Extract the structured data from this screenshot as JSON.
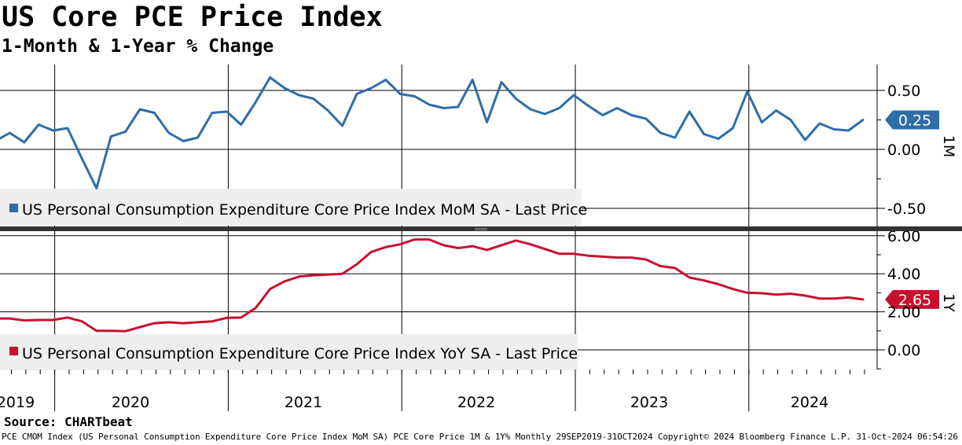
{
  "title": "US Core PCE Price Index",
  "subtitle": "1-Month & 1-Year % Change",
  "source": "Source: CHARTbeat",
  "footer": "PCE CMOM Index (US Personal Consumption Expenditure Core Price Index MoM SA) PCE Core Price 1M & 1Y%  Monthly 29SEP2019-31OCT2024 Copyright© 2024 Bloomberg Finance L.P. 31-Oct-2024 06:54:26",
  "colors": {
    "mom": "#2e6da8",
    "yoy": "#c8102e",
    "grid": "#000000",
    "legend_bg": "#eeeeee",
    "divider": "#333333"
  },
  "chart_data": [
    {
      "type": "line",
      "panel": "top",
      "axis_label": "1M",
      "legend": "US Personal Consumption Expenditure Core Price Index MoM SA - Last Price",
      "last_value_label": "0.25",
      "ylim": [
        -0.6,
        0.65
      ],
      "yticks": [
        0.5,
        0.0,
        -0.5
      ],
      "ytick_labels": [
        "0.50",
        "0.00",
        "-0.50"
      ],
      "minor_yticks": [
        0.25,
        -0.25
      ],
      "x_start": "2019-09",
      "x_end": "2024-09",
      "values": [
        0.07,
        0.14,
        0.06,
        0.21,
        0.16,
        0.18,
        -0.08,
        -0.33,
        0.11,
        0.15,
        0.34,
        0.31,
        0.14,
        0.07,
        0.1,
        0.31,
        0.32,
        0.21,
        0.4,
        0.61,
        0.52,
        0.46,
        0.43,
        0.33,
        0.2,
        0.47,
        0.52,
        0.59,
        0.47,
        0.45,
        0.38,
        0.35,
        0.36,
        0.59,
        0.23,
        0.57,
        0.43,
        0.34,
        0.3,
        0.35,
        0.46,
        0.37,
        0.29,
        0.35,
        0.29,
        0.26,
        0.14,
        0.1,
        0.32,
        0.13,
        0.09,
        0.18,
        0.49,
        0.23,
        0.33,
        0.25,
        0.08,
        0.22,
        0.17,
        0.16,
        0.25
      ]
    },
    {
      "type": "line",
      "panel": "bottom",
      "axis_label": "1Y",
      "legend": "US Personal Consumption Expenditure Core Price Index YoY SA - Last Price",
      "last_value_label": "2.65",
      "ylim": [
        -1.2,
        6.5
      ],
      "yticks": [
        6.0,
        4.0,
        2.0,
        0.0
      ],
      "ytick_labels": [
        "6.00",
        "4.00",
        "2.00",
        "0.00"
      ],
      "minor_yticks": [
        5.0,
        3.0,
        1.0,
        -1.0
      ],
      "x_start": "2019-09",
      "x_end": "2024-09",
      "values": [
        1.65,
        1.65,
        1.55,
        1.57,
        1.57,
        1.7,
        1.5,
        1.0,
        1.0,
        0.98,
        1.2,
        1.4,
        1.45,
        1.4,
        1.45,
        1.5,
        1.68,
        1.7,
        2.2,
        3.2,
        3.6,
        3.85,
        3.92,
        3.96,
        4.0,
        4.5,
        5.15,
        5.4,
        5.55,
        5.8,
        5.8,
        5.5,
        5.35,
        5.45,
        5.25,
        5.5,
        5.75,
        5.55,
        5.3,
        5.05,
        5.05,
        4.95,
        4.9,
        4.85,
        4.85,
        4.75,
        4.4,
        4.3,
        3.8,
        3.65,
        3.45,
        3.2,
        3.0,
        2.98,
        2.9,
        2.95,
        2.85,
        2.7,
        2.7,
        2.75,
        2.65
      ]
    }
  ],
  "x_axis": {
    "years": [
      "2019",
      "2020",
      "2021",
      "2022",
      "2023",
      "2024"
    ]
  }
}
